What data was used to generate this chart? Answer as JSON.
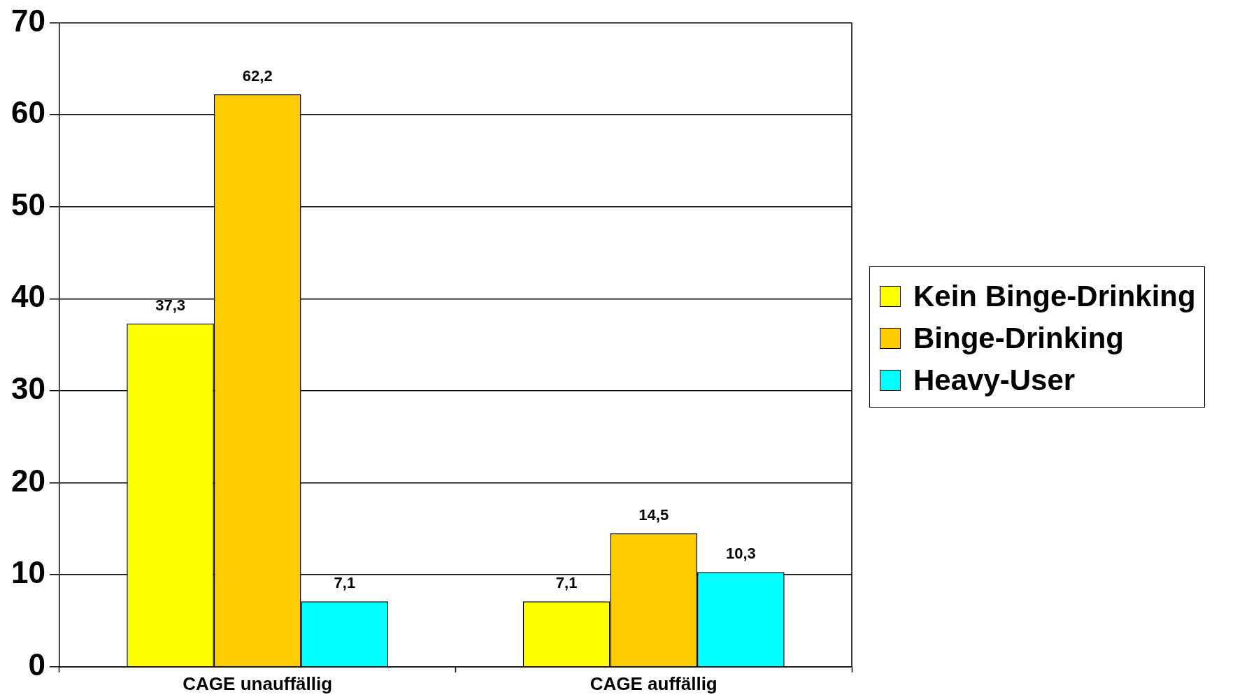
{
  "chart_data": {
    "type": "bar",
    "categories": [
      "CAGE unauffällig",
      "CAGE auffällig"
    ],
    "series": [
      {
        "name": "Kein Binge-Drinking",
        "color": "#ffff00",
        "values": [
          37.3,
          7.1
        ],
        "value_labels": [
          "37,3",
          "7,1"
        ]
      },
      {
        "name": "Binge-Drinking",
        "color": "#ffcc00",
        "values": [
          62.2,
          14.5
        ],
        "value_labels": [
          "62,2",
          "14,5"
        ]
      },
      {
        "name": "Heavy-User",
        "color": "#00ffff",
        "values": [
          7.1,
          10.3
        ],
        "value_labels": [
          "7,1",
          "10,3"
        ]
      }
    ],
    "ylim": [
      0,
      70
    ],
    "yticks": [
      0,
      10,
      20,
      30,
      40,
      50,
      60,
      70
    ],
    "grid": "y",
    "legend": "right"
  }
}
